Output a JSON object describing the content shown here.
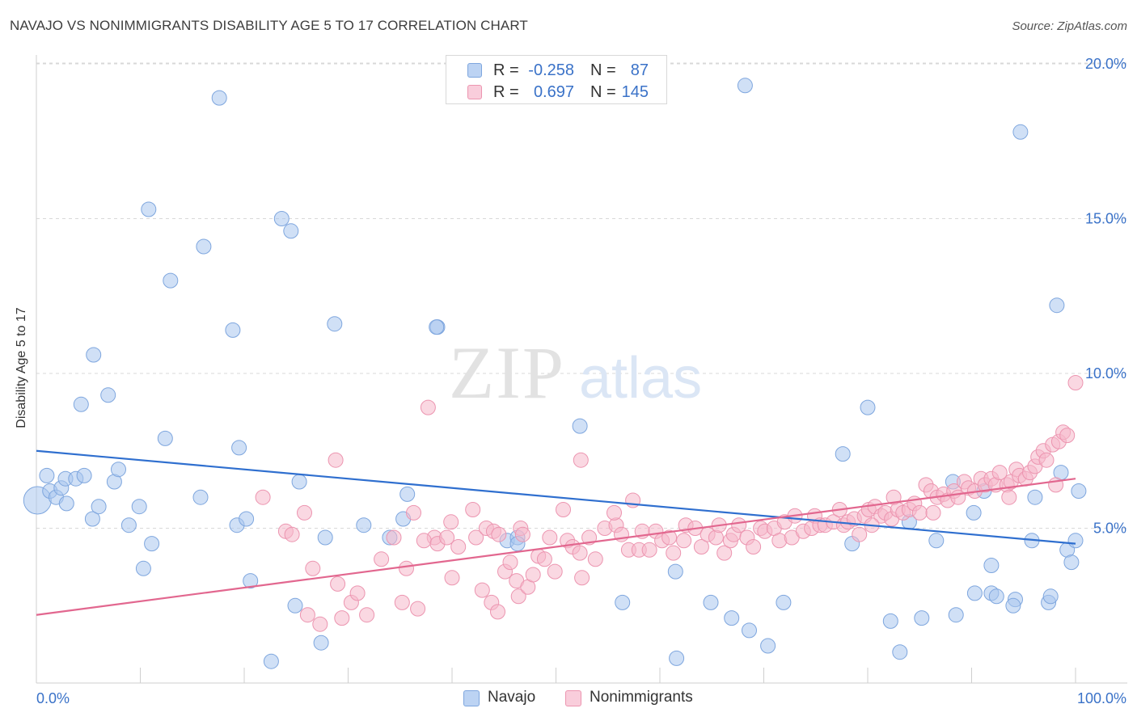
{
  "header": {
    "title": "NAVAJO VS NONIMMIGRANTS DISABILITY AGE 5 TO 17 CORRELATION CHART",
    "source": "Source: ZipAtlas.com"
  },
  "legend_top": {
    "rows": [
      {
        "r_label": "R =",
        "r_value": "-0.258",
        "n_label": "N =",
        "n_value": "87"
      },
      {
        "r_label": "R =",
        "r_value": "0.697",
        "n_label": "N =",
        "n_value": "145"
      }
    ]
  },
  "legend_bottom": {
    "items": [
      {
        "label": "Navajo"
      },
      {
        "label": "Nonimmigrants"
      }
    ]
  },
  "colors": {
    "navajo_fill": "#a9c6ef",
    "navajo_stroke": "#7ea6de",
    "navajo_line": "#2f6fcf",
    "nonimm_fill": "#f6b8cb",
    "nonimm_stroke": "#ec95b0",
    "nonimm_line": "#e2678f",
    "tick_text": "#3a72c8",
    "grid": "#d8d8d8"
  },
  "watermark": {
    "zip": "ZIP",
    "atlas": "atlas"
  },
  "chart_data": {
    "type": "scatter",
    "title": "NAVAJO VS NONIMMIGRANTS DISABILITY AGE 5 TO 17 CORRELATION CHART",
    "xlabel": "",
    "ylabel": "Disability Age 5 to 17",
    "xlim": [
      0,
      100
    ],
    "ylim": [
      0,
      20.6
    ],
    "x_ticks": [
      {
        "value": 0,
        "label": "0.0%"
      },
      {
        "value": 100,
        "label": "100.0%"
      }
    ],
    "y_ticks": [
      {
        "value": 5,
        "label": "5.0%"
      },
      {
        "value": 10,
        "label": "10.0%"
      },
      {
        "value": 15,
        "label": "15.0%"
      },
      {
        "value": 20,
        "label": "20.0%"
      }
    ],
    "grid": "horizontal dashed",
    "legend": "bottom-center",
    "series": [
      {
        "name": "Navajo",
        "r": -0.258,
        "n": 87,
        "trend": {
          "x": [
            0,
            100
          ],
          "y": [
            7.5,
            4.5
          ]
        },
        "points": [
          [
            0.1,
            5.9
          ],
          [
            1.0,
            6.7
          ],
          [
            1.3,
            6.2
          ],
          [
            1.9,
            6.0
          ],
          [
            2.4,
            6.3
          ],
          [
            2.9,
            5.8
          ],
          [
            2.8,
            6.6
          ],
          [
            3.8,
            6.6
          ],
          [
            4.6,
            6.7
          ],
          [
            5.4,
            5.3
          ],
          [
            6.0,
            5.7
          ],
          [
            7.5,
            6.5
          ],
          [
            7.9,
            6.9
          ],
          [
            8.9,
            5.1
          ],
          [
            9.9,
            5.7
          ],
          [
            10.3,
            3.7
          ],
          [
            11.1,
            4.5
          ],
          [
            12.4,
            7.9
          ],
          [
            12.9,
            13.0
          ],
          [
            15.8,
            6.0
          ],
          [
            16.1,
            14.1
          ],
          [
            17.6,
            18.9
          ],
          [
            18.9,
            11.4
          ],
          [
            19.5,
            7.6
          ],
          [
            19.3,
            5.1
          ],
          [
            20.2,
            5.3
          ],
          [
            20.6,
            3.3
          ],
          [
            22.6,
            0.7
          ],
          [
            23.6,
            15.0
          ],
          [
            24.5,
            14.6
          ],
          [
            24.9,
            2.5
          ],
          [
            25.3,
            6.5
          ],
          [
            27.4,
            1.3
          ],
          [
            27.8,
            4.7
          ],
          [
            28.7,
            11.6
          ],
          [
            31.5,
            5.1
          ],
          [
            34.0,
            4.7
          ],
          [
            35.3,
            5.3
          ],
          [
            35.7,
            6.1
          ],
          [
            38.6,
            11.5
          ],
          [
            45.3,
            4.6
          ],
          [
            46.3,
            4.7
          ],
          [
            46.3,
            4.5
          ],
          [
            52.3,
            8.3
          ],
          [
            56.4,
            2.6
          ],
          [
            61.6,
            0.8
          ],
          [
            61.5,
            3.6
          ],
          [
            64.9,
            2.6
          ],
          [
            66.9,
            2.1
          ],
          [
            68.2,
            19.3
          ],
          [
            68.6,
            1.7
          ],
          [
            70.4,
            1.2
          ],
          [
            71.9,
            2.6
          ],
          [
            77.6,
            7.4
          ],
          [
            78.5,
            4.5
          ],
          [
            80.0,
            8.9
          ],
          [
            82.2,
            2.0
          ],
          [
            83.1,
            1.0
          ],
          [
            84.0,
            5.2
          ],
          [
            85.2,
            2.1
          ],
          [
            86.6,
            4.6
          ],
          [
            88.5,
            2.2
          ],
          [
            88.2,
            6.5
          ],
          [
            90.2,
            5.5
          ],
          [
            91.2,
            6.2
          ],
          [
            91.9,
            3.8
          ],
          [
            90.3,
            2.9
          ],
          [
            91.9,
            2.9
          ],
          [
            92.4,
            2.8
          ],
          [
            94.2,
            2.7
          ],
          [
            94.0,
            2.5
          ],
          [
            94.7,
            17.8
          ],
          [
            95.8,
            4.6
          ],
          [
            96.1,
            6.0
          ],
          [
            97.4,
            2.6
          ],
          [
            97.6,
            2.8
          ],
          [
            98.2,
            12.2
          ],
          [
            98.6,
            6.8
          ],
          [
            99.2,
            4.3
          ],
          [
            100.0,
            4.6
          ],
          [
            100.3,
            6.2
          ],
          [
            99.6,
            3.9
          ],
          [
            10.8,
            15.3
          ],
          [
            5.5,
            10.6
          ],
          [
            4.3,
            9.0
          ],
          [
            6.9,
            9.3
          ],
          [
            38.5,
            11.5
          ]
        ]
      },
      {
        "name": "Nonimmigrants",
        "r": 0.697,
        "n": 145,
        "trend": {
          "x": [
            0,
            100
          ],
          "y": [
            2.2,
            6.6
          ]
        },
        "points": [
          [
            21.8,
            6.0
          ],
          [
            24.0,
            4.9
          ],
          [
            24.6,
            4.8
          ],
          [
            25.8,
            5.5
          ],
          [
            26.6,
            3.7
          ],
          [
            27.3,
            1.9
          ],
          [
            26.1,
            2.2
          ],
          [
            29.4,
            2.1
          ],
          [
            29.0,
            3.2
          ],
          [
            28.8,
            7.2
          ],
          [
            30.3,
            2.6
          ],
          [
            30.9,
            2.9
          ],
          [
            31.8,
            2.2
          ],
          [
            33.2,
            4.0
          ],
          [
            34.4,
            4.7
          ],
          [
            35.2,
            2.6
          ],
          [
            35.6,
            3.7
          ],
          [
            36.7,
            2.4
          ],
          [
            36.3,
            5.5
          ],
          [
            38.3,
            4.7
          ],
          [
            37.3,
            4.6
          ],
          [
            38.6,
            4.5
          ],
          [
            39.5,
            4.7
          ],
          [
            37.7,
            8.9
          ],
          [
            39.9,
            5.2
          ],
          [
            40.0,
            3.4
          ],
          [
            40.6,
            4.4
          ],
          [
            42.0,
            5.6
          ],
          [
            42.3,
            4.7
          ],
          [
            43.3,
            5.0
          ],
          [
            42.9,
            3.0
          ],
          [
            44.0,
            4.9
          ],
          [
            44.5,
            4.8
          ],
          [
            43.8,
            2.6
          ],
          [
            44.4,
            2.3
          ],
          [
            45.1,
            3.6
          ],
          [
            45.6,
            3.9
          ],
          [
            46.2,
            3.3
          ],
          [
            46.6,
            5.0
          ],
          [
            46.8,
            4.8
          ],
          [
            46.4,
            2.8
          ],
          [
            47.3,
            3.1
          ],
          [
            47.8,
            3.5
          ],
          [
            48.3,
            4.1
          ],
          [
            49.4,
            4.7
          ],
          [
            48.9,
            4.0
          ],
          [
            49.9,
            3.6
          ],
          [
            50.7,
            5.6
          ],
          [
            51.1,
            4.6
          ],
          [
            51.6,
            4.4
          ],
          [
            52.5,
            3.4
          ],
          [
            52.3,
            4.2
          ],
          [
            53.2,
            4.7
          ],
          [
            53.8,
            4.0
          ],
          [
            54.7,
            5.0
          ],
          [
            52.4,
            7.2
          ],
          [
            55.8,
            5.1
          ],
          [
            55.6,
            5.5
          ],
          [
            56.3,
            4.8
          ],
          [
            57.0,
            4.3
          ],
          [
            57.4,
            5.9
          ],
          [
            58.3,
            4.9
          ],
          [
            58.0,
            4.3
          ],
          [
            59.0,
            4.3
          ],
          [
            59.6,
            4.9
          ],
          [
            60.2,
            4.6
          ],
          [
            60.9,
            4.7
          ],
          [
            61.3,
            4.2
          ],
          [
            62.3,
            4.6
          ],
          [
            62.5,
            5.1
          ],
          [
            63.4,
            5.0
          ],
          [
            64.0,
            4.4
          ],
          [
            64.6,
            4.8
          ],
          [
            65.4,
            4.7
          ],
          [
            65.7,
            5.1
          ],
          [
            66.2,
            4.2
          ],
          [
            66.8,
            4.6
          ],
          [
            67.1,
            4.8
          ],
          [
            67.6,
            5.1
          ],
          [
            68.4,
            4.7
          ],
          [
            69.0,
            4.4
          ],
          [
            69.7,
            5.0
          ],
          [
            70.1,
            4.9
          ],
          [
            71.0,
            5.0
          ],
          [
            71.5,
            4.6
          ],
          [
            72.0,
            5.2
          ],
          [
            72.7,
            4.7
          ],
          [
            73.0,
            5.4
          ],
          [
            73.8,
            4.9
          ],
          [
            74.6,
            5.0
          ],
          [
            74.9,
            5.4
          ],
          [
            75.4,
            5.1
          ],
          [
            75.9,
            5.1
          ],
          [
            76.7,
            5.2
          ],
          [
            77.3,
            5.6
          ],
          [
            77.7,
            5.1
          ],
          [
            78.1,
            5.2
          ],
          [
            78.7,
            5.3
          ],
          [
            79.2,
            4.8
          ],
          [
            79.7,
            5.4
          ],
          [
            80.1,
            5.6
          ],
          [
            80.7,
            5.7
          ],
          [
            81.3,
            5.4
          ],
          [
            81.7,
            5.5
          ],
          [
            82.3,
            5.3
          ],
          [
            82.9,
            5.6
          ],
          [
            83.4,
            5.5
          ],
          [
            84.0,
            5.6
          ],
          [
            84.5,
            5.8
          ],
          [
            85.0,
            5.5
          ],
          [
            85.6,
            6.4
          ],
          [
            86.1,
            6.2
          ],
          [
            86.7,
            6.0
          ],
          [
            87.3,
            6.1
          ],
          [
            87.7,
            5.9
          ],
          [
            88.3,
            6.2
          ],
          [
            88.7,
            6.0
          ],
          [
            89.3,
            6.5
          ],
          [
            89.7,
            6.3
          ],
          [
            90.3,
            6.2
          ],
          [
            90.9,
            6.6
          ],
          [
            91.3,
            6.4
          ],
          [
            91.9,
            6.6
          ],
          [
            92.3,
            6.4
          ],
          [
            92.7,
            6.8
          ],
          [
            93.4,
            6.4
          ],
          [
            93.8,
            6.5
          ],
          [
            94.3,
            6.9
          ],
          [
            94.6,
            6.7
          ],
          [
            95.2,
            6.6
          ],
          [
            95.6,
            6.8
          ],
          [
            96.1,
            7.0
          ],
          [
            96.4,
            7.3
          ],
          [
            96.9,
            7.5
          ],
          [
            97.2,
            7.2
          ],
          [
            97.8,
            7.7
          ],
          [
            98.4,
            7.8
          ],
          [
            98.8,
            8.1
          ],
          [
            99.2,
            8.0
          ],
          [
            100.0,
            9.7
          ],
          [
            98.1,
            6.4
          ],
          [
            93.6,
            6.0
          ],
          [
            86.3,
            5.5
          ],
          [
            82.5,
            6.0
          ],
          [
            80.4,
            5.1
          ]
        ]
      }
    ]
  }
}
